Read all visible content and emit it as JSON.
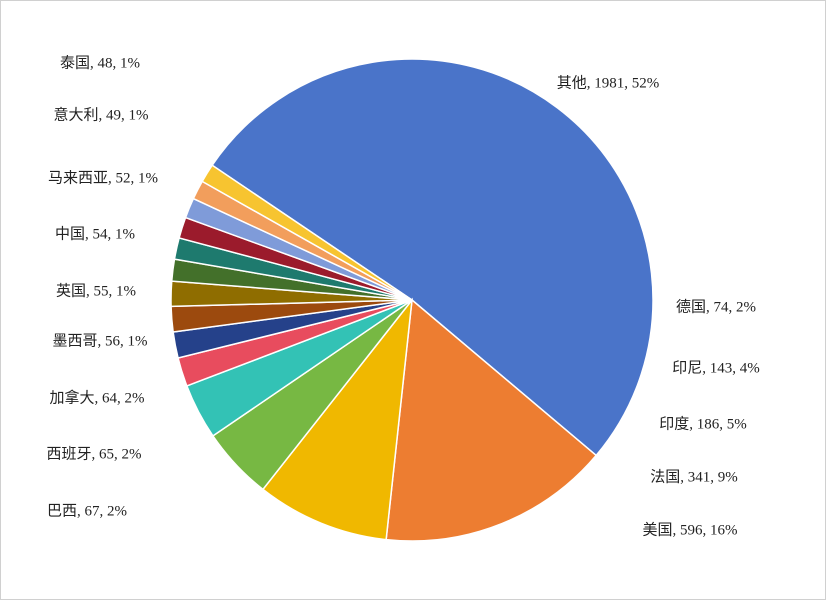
{
  "chart_data": {
    "type": "pie",
    "values": [
      1981,
      596,
      341,
      186,
      143,
      74,
      67,
      65,
      64,
      56,
      55,
      54,
      52,
      49,
      48
    ],
    "value_labels": [
      "其他, 1981, 52%",
      "美国, 596, 16%",
      "法国, 341, 9%",
      "印度, 186, 5%",
      "印尼, 143, 4%",
      "德国, 74, 2%",
      "巴西, 67, 2%",
      "西班牙, 65, 2%",
      "加拿大, 64, 2%",
      "墨西哥, 56, 1%",
      "英国, 55, 1%",
      "中国, 54, 1%",
      "马来西亚, 52, 1%",
      "意大利, 49, 1%",
      "泰国, 48, 1%"
    ],
    "colors": [
      "#4a74c9",
      "#ed7d31",
      "#f0b800",
      "#77b843",
      "#33c2b5",
      "#e84c5e",
      "#25418a",
      "#9c4a0e",
      "#8f6d00",
      "#43702a",
      "#1e7a6e",
      "#9b1b2c",
      "#7f9bd9",
      "#f29e5c",
      "#f7c430"
    ]
  }
}
